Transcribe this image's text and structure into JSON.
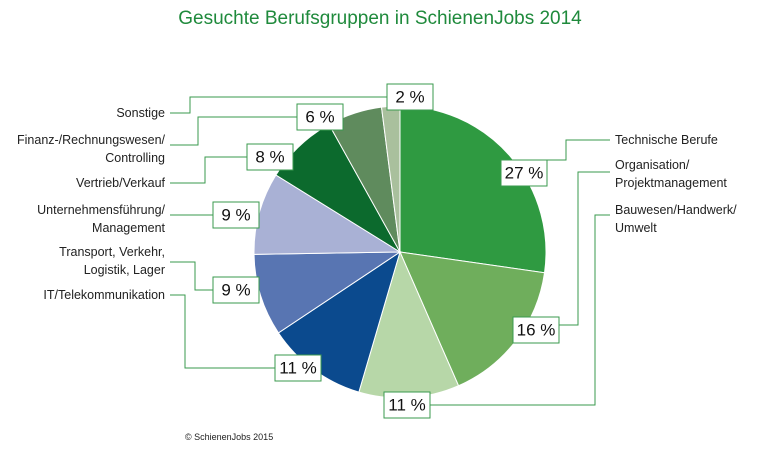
{
  "chart_data": {
    "type": "pie",
    "title": "Gesuchte Berufsgruppen in SchienenJobs 2014",
    "categories": [
      "Technische Berufe",
      "Organisation/\nProjektmanagement",
      "Bauwesen/Handwerk/\nUmwelt",
      "IT/Telekommunikation",
      "Transport, Verkehr,\nLogistik, Lager",
      "Unternehmensführung/\nManagement",
      "Vertrieb/Verkauf",
      "Finanz-/Rechnungswesen/\nControlling",
      "Sonstige"
    ],
    "values": [
      27,
      16,
      11,
      11,
      9,
      9,
      8,
      6,
      2
    ],
    "value_labels": [
      "27 %",
      "16 %",
      "11 %",
      "11 %",
      "9 %",
      "9 %",
      "8 %",
      "6 %",
      "2 %"
    ],
    "colors": [
      "#2f9a41",
      "#6fae5c",
      "#b7d7a8",
      "#0b4a8e",
      "#5875b2",
      "#a9b1d5",
      "#0c6a2d",
      "#5f8b5d",
      "#a9c09d"
    ],
    "source": "© SchienenJobs 2015"
  }
}
